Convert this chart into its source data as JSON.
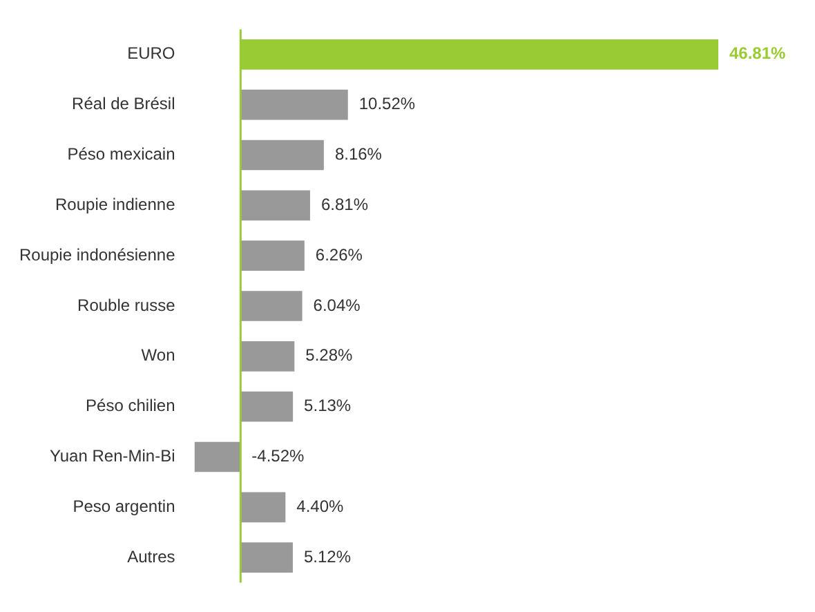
{
  "chart_data": {
    "type": "bar",
    "orientation": "horizontal",
    "categories": [
      "EURO",
      "Réal de Brésil",
      "Péso mexicain",
      "Roupie indienne",
      "Roupie indonésienne",
      "Rouble russe",
      "Won",
      "Péso chilien",
      "Yuan Ren-Min-Bi",
      "Peso argentin",
      "Autres"
    ],
    "values": [
      46.81,
      10.52,
      8.16,
      6.81,
      6.26,
      6.04,
      5.28,
      5.13,
      -4.52,
      4.4,
      5.12
    ],
    "colors": [
      "#99cc33",
      "#999999",
      "#999999",
      "#999999",
      "#999999",
      "#999999",
      "#999999",
      "#999999",
      "#999999",
      "#999999",
      "#999999"
    ],
    "value_labels": [
      "46.81%",
      "10.52%",
      "8.16%",
      "6.81%",
      "6.26%",
      "6.04%",
      "5.28%",
      "5.13%",
      "-4.52%",
      "4.40%",
      "5.12%"
    ],
    "ref_lines": [
      {
        "axis": "x",
        "value": 0,
        "color": "#99cc33"
      }
    ],
    "tick_labels": "y",
    "legend": false
  }
}
